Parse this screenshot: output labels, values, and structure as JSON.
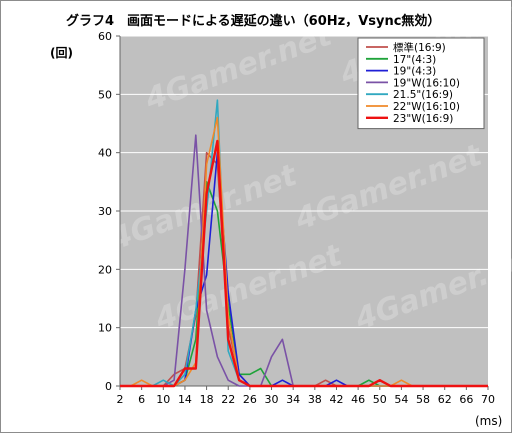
{
  "title": "グラフ4　画面モードによる遅延の違い（60Hz，Vsync無効）",
  "ylabel": "(回)",
  "xlabel": "(ms)",
  "watermark": "4Gamer.net",
  "chart_data": {
    "type": "line",
    "x": [
      2,
      4,
      6,
      8,
      10,
      12,
      14,
      16,
      18,
      20,
      22,
      24,
      26,
      28,
      30,
      32,
      34,
      36,
      38,
      40,
      42,
      44,
      46,
      48,
      50,
      52,
      54,
      56,
      58,
      60,
      62,
      64,
      66,
      68,
      70
    ],
    "xticks": [
      2,
      6,
      10,
      14,
      18,
      22,
      26,
      30,
      34,
      38,
      42,
      46,
      50,
      54,
      58,
      62,
      66,
      70
    ],
    "xlim": [
      2,
      70
    ],
    "ylim": [
      0,
      60
    ],
    "yticks": [
      0,
      10,
      20,
      30,
      40,
      50,
      60
    ],
    "grid": true,
    "legend_position": "top-right",
    "series": [
      {
        "name": "標準(16:9)",
        "color": "#c0504d",
        "values": [
          0,
          0,
          0,
          0,
          0,
          2,
          3,
          12,
          40,
          38,
          10,
          2,
          0,
          0,
          0,
          0,
          0,
          0,
          0,
          1,
          0,
          0,
          0,
          0,
          0,
          0,
          0,
          0,
          0,
          0,
          0,
          0,
          0,
          0,
          0
        ]
      },
      {
        "name": "17\"(4:3)",
        "color": "#1fa33a",
        "values": [
          0,
          0,
          0,
          0,
          0,
          0,
          1,
          8,
          35,
          30,
          14,
          2,
          2,
          3,
          0,
          0,
          0,
          0,
          0,
          0,
          0,
          0,
          0,
          1,
          0,
          0,
          0,
          0,
          0,
          0,
          0,
          0,
          0,
          0,
          0
        ]
      },
      {
        "name": "19\"(4:3)",
        "color": "#1f1fd6",
        "values": [
          0,
          0,
          0,
          0,
          0,
          0,
          1,
          13,
          19,
          40,
          16,
          2,
          0,
          0,
          0,
          1,
          0,
          0,
          0,
          0,
          1,
          0,
          0,
          0,
          0,
          0,
          0,
          0,
          0,
          0,
          0,
          0,
          0,
          0,
          0
        ]
      },
      {
        "name": "19\"W(16:10)",
        "color": "#7a52a6",
        "values": [
          0,
          0,
          0,
          0,
          0,
          1,
          20,
          43,
          13,
          5,
          1,
          0,
          0,
          0,
          5,
          8,
          0,
          0,
          0,
          0,
          0,
          0,
          0,
          0,
          0,
          0,
          0,
          0,
          0,
          0,
          0,
          0,
          0,
          0,
          0
        ]
      },
      {
        "name": "21.5\"(16:9)",
        "color": "#31a8c0",
        "values": [
          0,
          0,
          0,
          0,
          1,
          0,
          2,
          13,
          30,
          49,
          6,
          1,
          0,
          0,
          0,
          0,
          0,
          0,
          0,
          0,
          0,
          0,
          0,
          0,
          0,
          0,
          0,
          0,
          0,
          0,
          0,
          0,
          0,
          0,
          0
        ]
      },
      {
        "name": "22\"W(16:10)",
        "color": "#f08a2a",
        "values": [
          0,
          0,
          1,
          0,
          0,
          0,
          1,
          4,
          38,
          46,
          12,
          1,
          0,
          0,
          0,
          0,
          0,
          0,
          0,
          0,
          0,
          0,
          0,
          0,
          0,
          0,
          1,
          0,
          0,
          0,
          0,
          0,
          0,
          0,
          0
        ]
      },
      {
        "name": "23\"W(16:9)",
        "color": "#ee1111",
        "values": [
          0,
          0,
          0,
          0,
          0,
          0,
          3,
          3,
          33,
          42,
          8,
          1,
          0,
          0,
          0,
          0,
          0,
          0,
          0,
          0,
          0,
          0,
          0,
          0,
          1,
          0,
          0,
          0,
          0,
          0,
          0,
          0,
          0,
          0,
          0
        ]
      }
    ]
  }
}
